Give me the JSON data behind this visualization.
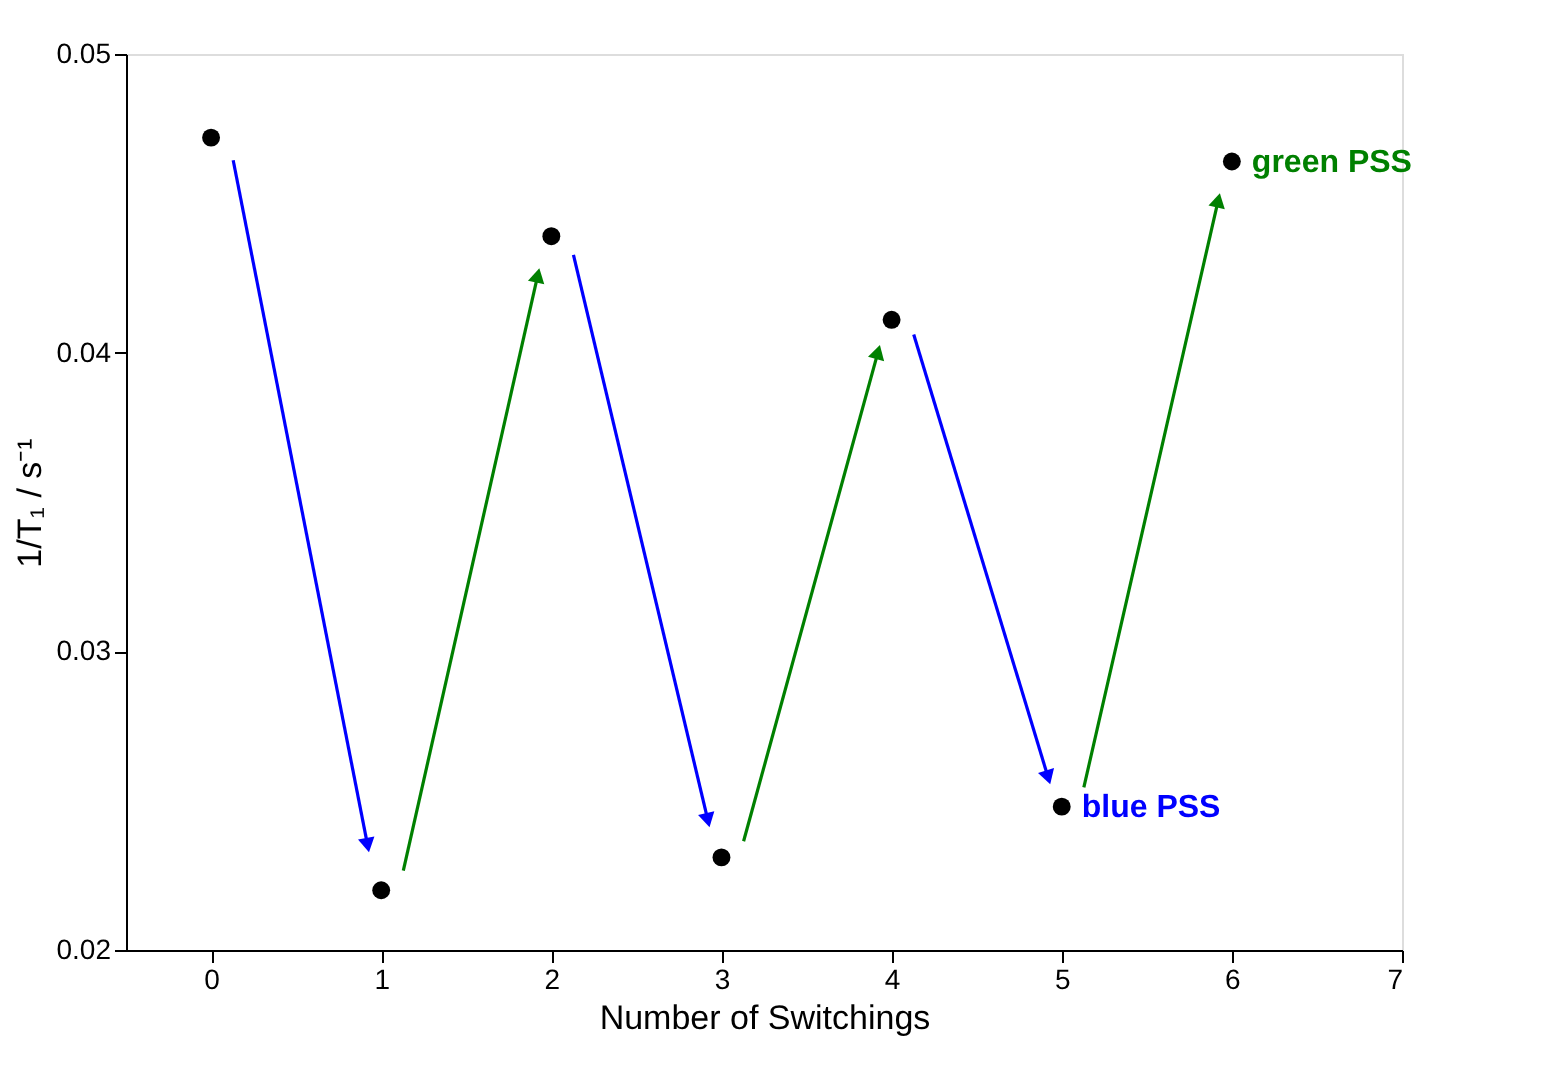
{
  "chart_data": {
    "type": "scatter",
    "xlabel": "Number of Switchings",
    "ylabel": "1/T₁ / s⁻¹",
    "x": [
      0,
      1,
      2,
      3,
      4,
      5,
      6
    ],
    "series": [
      {
        "color": "#000000",
        "values": [
          0.0472,
          0.022,
          0.0439,
          0.0231,
          0.0411,
          0.0248,
          0.0464
        ]
      }
    ],
    "xlim": [
      -0.5,
      7
    ],
    "xticks": [
      0,
      1,
      2,
      3,
      4,
      5,
      6,
      7
    ],
    "ylim": [
      0.02,
      0.05
    ],
    "yticks": [
      {
        "value": 0.02,
        "label": "0.02"
      },
      {
        "value": 0.03,
        "label": "0.03"
      },
      {
        "value": 0.04,
        "label": "0.04"
      },
      {
        "value": 0.05,
        "label": "0.05"
      }
    ],
    "annotations": [
      {
        "text": "blue PSS",
        "x": 5,
        "y": 0.0248
      },
      {
        "text": "green PSS",
        "x": 6,
        "y": 0.0464
      }
    ],
    "marker": "circle",
    "grid": false
  }
}
